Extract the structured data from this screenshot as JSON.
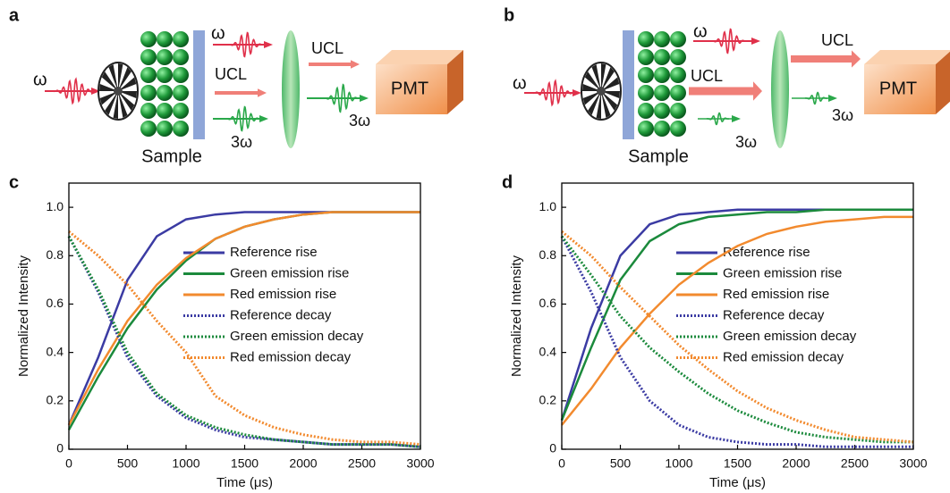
{
  "diagrams": [
    {
      "panel": "a",
      "labels": [
        "ω",
        "ω",
        "UCL",
        "3ω",
        "UCL",
        "3ω",
        "Sample",
        "PMT"
      ]
    },
    {
      "panel": "b",
      "labels": [
        "ω",
        "ω",
        "UCL",
        "3ω",
        "UCL",
        "3ω",
        "Sample",
        "PMT"
      ]
    }
  ],
  "chart_data": [
    {
      "type": "line",
      "panel": "c",
      "xlabel": "Time (μs)",
      "ylabel": "Normalized Intensity",
      "x": [
        0,
        250,
        500,
        750,
        1000,
        1250,
        1500,
        1750,
        2000,
        2250,
        2500,
        2750,
        3000
      ],
      "xlim": [
        0,
        3000
      ],
      "xticks": [
        0,
        500,
        1000,
        1500,
        2000,
        2500,
        3000
      ],
      "ylim": [
        0,
        1.1
      ],
      "yticks": [
        0,
        0.2,
        0.4,
        0.6,
        0.8,
        {
          "value": 1,
          "label": "1.0"
        }
      ],
      "series": [
        {
          "name": "Reference rise",
          "color": "#3b3ba3",
          "style": "solid",
          "values": [
            0.1,
            0.38,
            0.7,
            0.88,
            0.95,
            0.97,
            0.98,
            0.98,
            0.98,
            0.98,
            0.98,
            0.98,
            0.98
          ]
        },
        {
          "name": "Green emission rise",
          "color": "#1b8a3c",
          "style": "solid",
          "values": [
            0.08,
            0.3,
            0.5,
            0.66,
            0.78,
            0.87,
            0.92,
            0.95,
            0.97,
            0.98,
            0.98,
            0.98,
            0.98
          ]
        },
        {
          "name": "Red emission rise",
          "color": "#f28a2e",
          "style": "solid",
          "values": [
            0.1,
            0.33,
            0.53,
            0.68,
            0.79,
            0.87,
            0.92,
            0.95,
            0.97,
            0.98,
            0.98,
            0.98,
            0.98
          ]
        },
        {
          "name": "Reference decay",
          "color": "#3b3ba3",
          "style": "dotted",
          "values": [
            0.88,
            0.65,
            0.38,
            0.22,
            0.13,
            0.08,
            0.05,
            0.04,
            0.03,
            0.02,
            0.02,
            0.02,
            0.01
          ]
        },
        {
          "name": "Green emission decay",
          "color": "#1b8a3c",
          "style": "dotted",
          "values": [
            0.88,
            0.66,
            0.4,
            0.23,
            0.14,
            0.09,
            0.06,
            0.04,
            0.03,
            0.02,
            0.02,
            0.02,
            0.01
          ]
        },
        {
          "name": "Red emission decay",
          "color": "#f28a2e",
          "style": "dotted",
          "values": [
            0.9,
            0.8,
            0.68,
            0.53,
            0.4,
            0.22,
            0.14,
            0.09,
            0.06,
            0.04,
            0.03,
            0.03,
            0.02
          ]
        }
      ]
    },
    {
      "type": "line",
      "panel": "d",
      "xlabel": "Time (μs)",
      "ylabel": "Normalized Intensity",
      "x": [
        0,
        250,
        500,
        750,
        1000,
        1250,
        1500,
        1750,
        2000,
        2250,
        2500,
        2750,
        3000
      ],
      "xlim": [
        0,
        3000
      ],
      "xticks": [
        0,
        500,
        1000,
        1500,
        2000,
        2500,
        3000
      ],
      "ylim": [
        0,
        1.1
      ],
      "yticks": [
        0,
        0.2,
        0.4,
        0.6,
        0.8,
        {
          "value": 1,
          "label": "1.0"
        }
      ],
      "series": [
        {
          "name": "Reference rise",
          "color": "#3b3ba3",
          "style": "solid",
          "values": [
            0.12,
            0.5,
            0.8,
            0.93,
            0.97,
            0.98,
            0.99,
            0.99,
            0.99,
            0.99,
            0.99,
            0.99,
            0.99
          ]
        },
        {
          "name": "Green emission rise",
          "color": "#1b8a3c",
          "style": "solid",
          "values": [
            0.12,
            0.42,
            0.7,
            0.86,
            0.93,
            0.96,
            0.97,
            0.98,
            0.98,
            0.99,
            0.99,
            0.99,
            0.99
          ]
        },
        {
          "name": "Red emission rise",
          "color": "#f28a2e",
          "style": "solid",
          "values": [
            0.1,
            0.25,
            0.42,
            0.56,
            0.68,
            0.77,
            0.84,
            0.89,
            0.92,
            0.94,
            0.95,
            0.96,
            0.96
          ]
        },
        {
          "name": "Reference decay",
          "color": "#3b3ba3",
          "style": "dotted",
          "values": [
            0.88,
            0.65,
            0.38,
            0.2,
            0.1,
            0.05,
            0.03,
            0.02,
            0.02,
            0.01,
            0.01,
            0.01,
            0.01
          ]
        },
        {
          "name": "Green emission decay",
          "color": "#1b8a3c",
          "style": "dotted",
          "values": [
            0.88,
            0.72,
            0.55,
            0.42,
            0.32,
            0.23,
            0.16,
            0.11,
            0.07,
            0.05,
            0.04,
            0.03,
            0.03
          ]
        },
        {
          "name": "Red emission decay",
          "color": "#f28a2e",
          "style": "dotted",
          "values": [
            0.9,
            0.8,
            0.67,
            0.55,
            0.43,
            0.33,
            0.24,
            0.17,
            0.12,
            0.08,
            0.05,
            0.04,
            0.03
          ]
        }
      ]
    }
  ]
}
